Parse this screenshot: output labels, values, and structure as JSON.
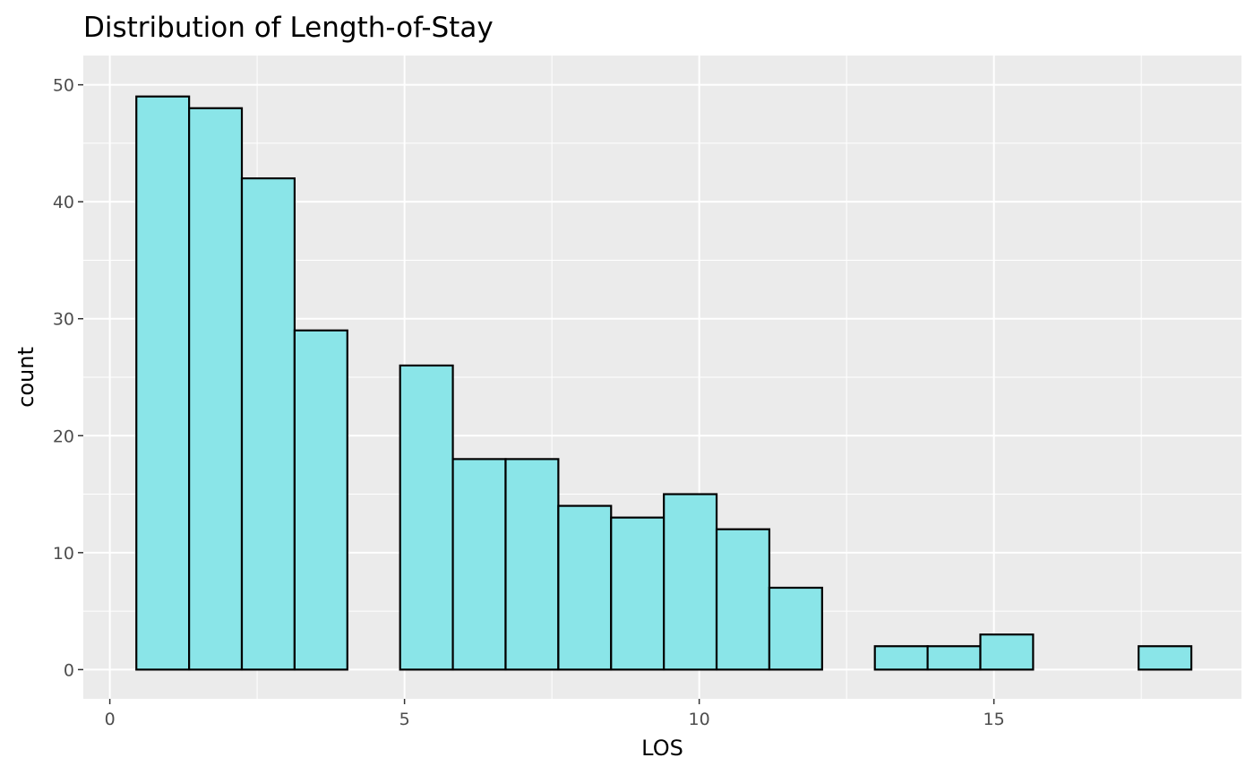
{
  "chart_data": {
    "type": "bar",
    "title": "Distribution of Length-of-Stay",
    "xlabel": "LOS",
    "ylabel": "count",
    "xlim": [
      -0.45,
      19.2
    ],
    "ylim": [
      -2.5,
      52.5
    ],
    "x_ticks": [
      0,
      5,
      10,
      15
    ],
    "y_ticks": [
      0,
      10,
      20,
      30,
      40,
      50
    ],
    "grid": true,
    "bin_width": 0.895,
    "bins": [
      {
        "x0": 0.45,
        "x1": 1.345,
        "count": 49
      },
      {
        "x0": 1.345,
        "x1": 2.24,
        "count": 48
      },
      {
        "x0": 2.24,
        "x1": 3.135,
        "count": 42
      },
      {
        "x0": 3.135,
        "x1": 4.03,
        "count": 29
      },
      {
        "x0": 4.03,
        "x1": 4.925,
        "count": 0
      },
      {
        "x0": 4.925,
        "x1": 5.82,
        "count": 26
      },
      {
        "x0": 5.82,
        "x1": 6.715,
        "count": 18
      },
      {
        "x0": 6.715,
        "x1": 7.61,
        "count": 18
      },
      {
        "x0": 7.61,
        "x1": 8.505,
        "count": 14
      },
      {
        "x0": 8.505,
        "x1": 9.4,
        "count": 13
      },
      {
        "x0": 9.4,
        "x1": 10.295,
        "count": 15
      },
      {
        "x0": 10.295,
        "x1": 11.19,
        "count": 12
      },
      {
        "x0": 11.19,
        "x1": 12.085,
        "count": 7
      },
      {
        "x0": 12.085,
        "x1": 12.98,
        "count": 0
      },
      {
        "x0": 12.98,
        "x1": 13.875,
        "count": 2
      },
      {
        "x0": 13.875,
        "x1": 14.77,
        "count": 2
      },
      {
        "x0": 14.77,
        "x1": 15.665,
        "count": 3
      },
      {
        "x0": 15.665,
        "x1": 16.56,
        "count": 0
      },
      {
        "x0": 16.56,
        "x1": 17.455,
        "count": 0
      },
      {
        "x0": 17.455,
        "x1": 18.35,
        "count": 2
      }
    ],
    "colors": {
      "bar_fill": "#8ae5e8",
      "bar_stroke": "#000000",
      "panel_background": "#ebebeb",
      "grid_line": "#ffffff"
    }
  }
}
